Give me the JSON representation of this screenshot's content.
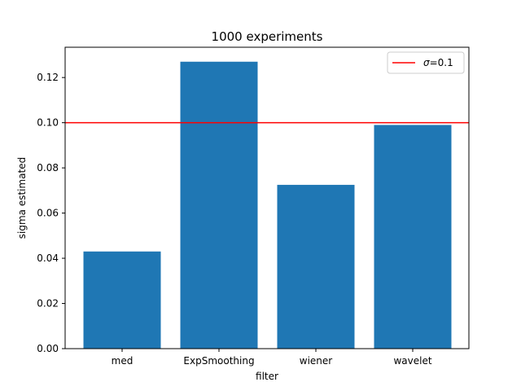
{
  "chart_data": {
    "type": "bar",
    "title": "1000 experiments",
    "xlabel": "filter",
    "ylabel": "sigma estimated",
    "categories": [
      "med",
      "ExpSmoothing",
      "wiener",
      "wavelet"
    ],
    "values": [
      0.043,
      0.127,
      0.0725,
      0.099
    ],
    "bar_color": "#1f77b4",
    "ylim": [
      0,
      0.1334
    ],
    "yticks": [
      "0.00",
      "0.02",
      "0.04",
      "0.06",
      "0.08",
      "0.10",
      "0.12"
    ],
    "reference_line": {
      "value": 0.1,
      "color": "#ff0000"
    },
    "legend": {
      "placement": "top-right",
      "entries": [
        {
          "symbol": "σ",
          "label": "=0.1",
          "color": "#ff0000"
        }
      ]
    },
    "grid": false
  }
}
